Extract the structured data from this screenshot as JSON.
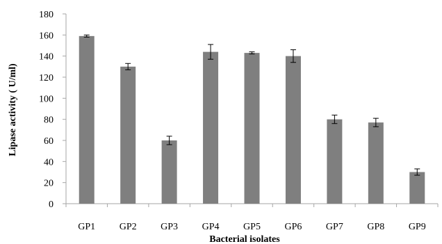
{
  "chart_data": {
    "type": "bar",
    "title": "",
    "xlabel": "Bacterial isolates",
    "ylabel": "Lipase activity  ( U/ml)",
    "categories": [
      "GP1",
      "GP2",
      "GP3",
      "GP4",
      "GP5",
      "GP6",
      "GP7",
      "GP8",
      "GP9"
    ],
    "values": [
      159,
      130,
      60,
      144,
      143,
      140,
      80,
      77,
      30
    ],
    "errors": [
      1,
      3,
      4,
      7,
      1,
      6,
      4,
      4,
      3
    ],
    "ylim": [
      0,
      180
    ],
    "yticks": [
      "0",
      "20",
      "40",
      "60",
      "80",
      "100",
      "120",
      "140",
      "160",
      "180"
    ],
    "grid": false,
    "legend": "none",
    "bar_color": "#7f7f7f",
    "axis_color": "#a6a6a6",
    "error_color": "#000000"
  }
}
